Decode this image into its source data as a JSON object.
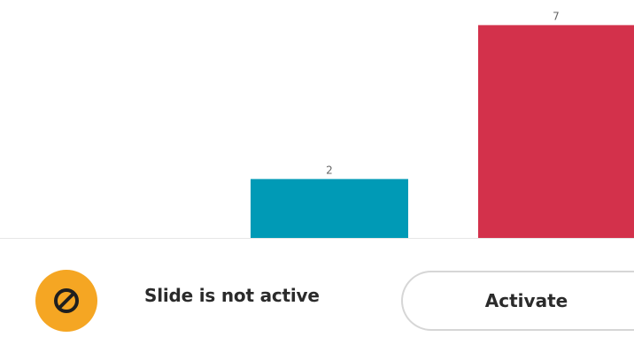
{
  "chart_data": {
    "type": "bar",
    "values": [
      2,
      7
    ],
    "data_labels": [
      "2",
      "7"
    ],
    "colors": [
      "#009ab6",
      "#d3314b"
    ]
  },
  "status_panel": {
    "icon": "prohibited-icon",
    "icon_color": "#f5a623",
    "message": "Slide is not active",
    "activate_label": "Activate"
  }
}
